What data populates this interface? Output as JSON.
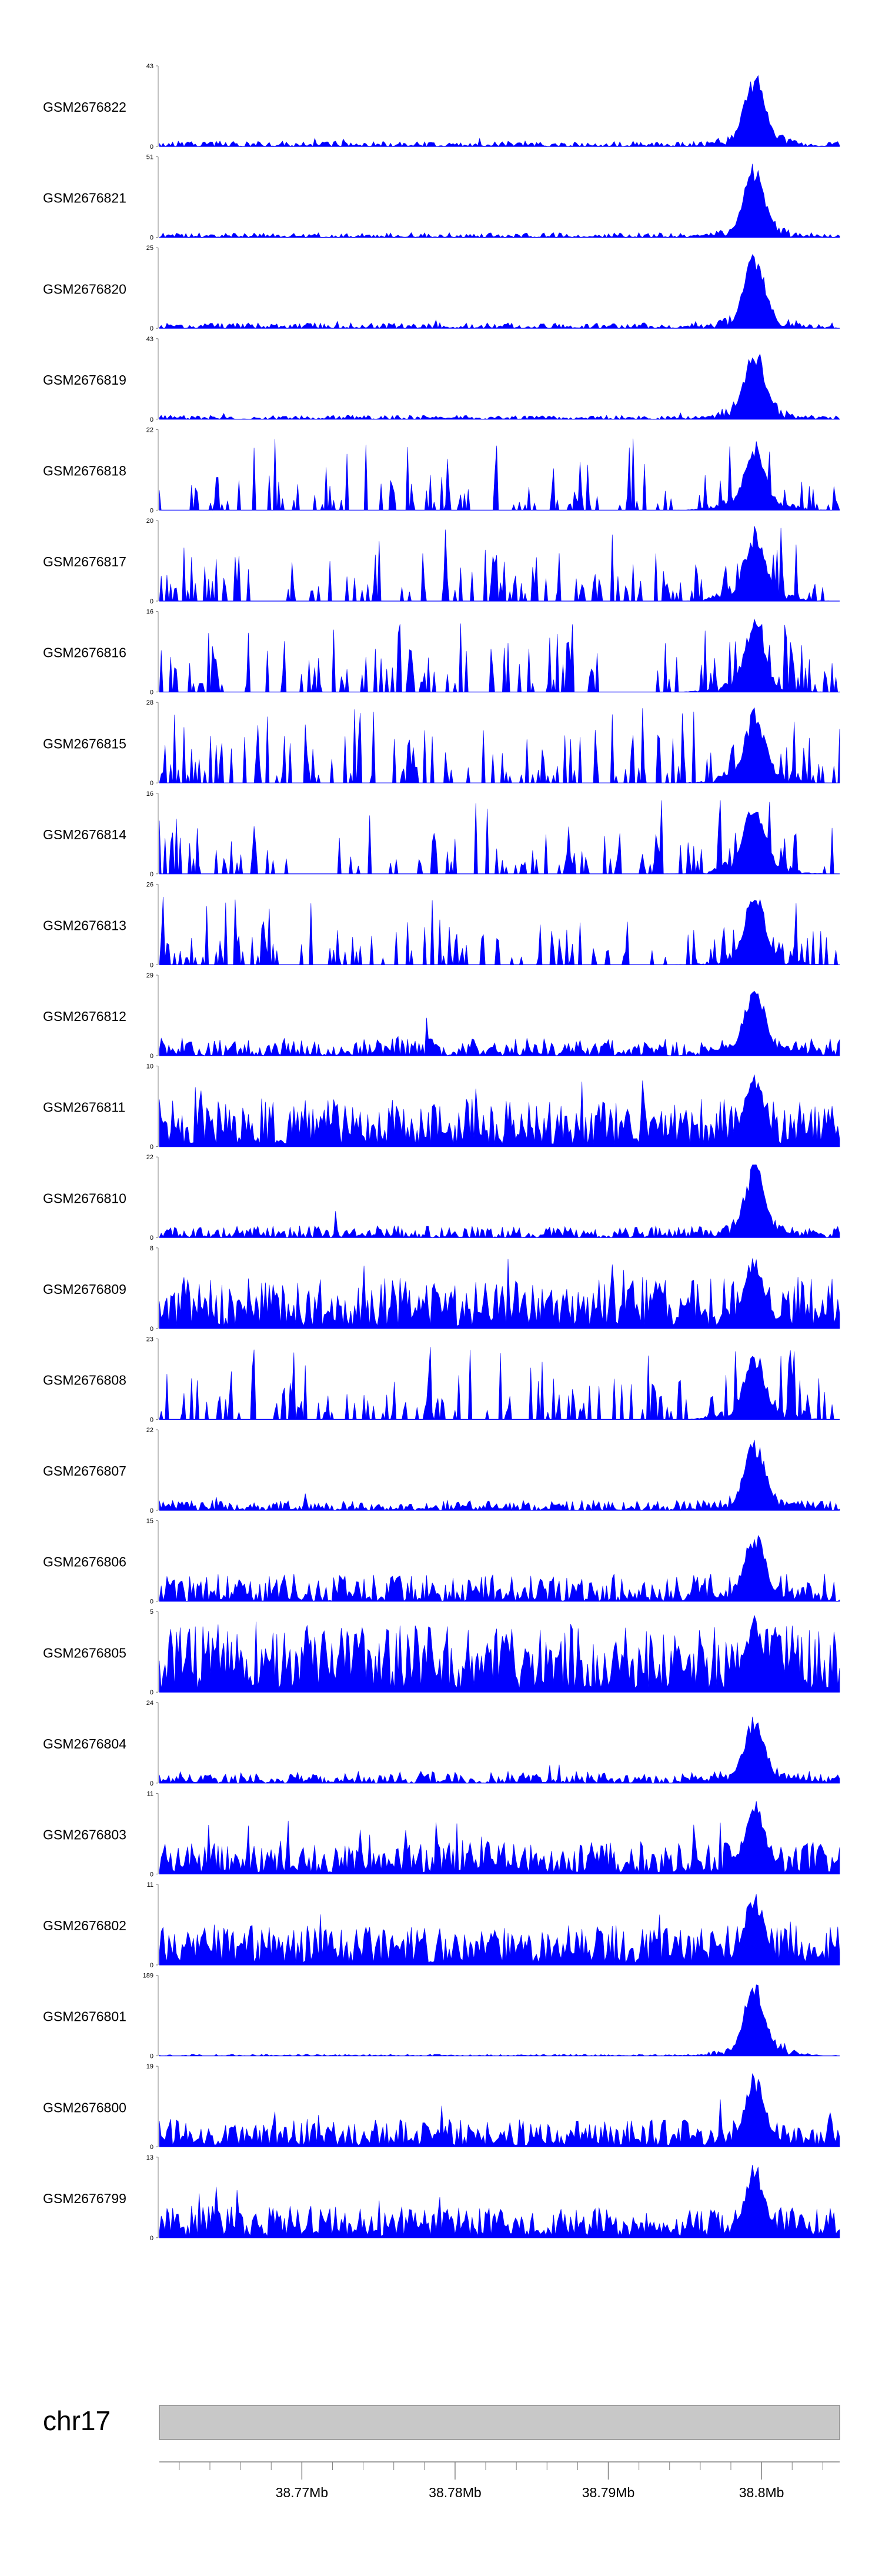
{
  "chart_data": {
    "type": "area",
    "title": "",
    "color": "#0000ff",
    "chromosome": "chr17",
    "xlim_mb": [
      38.7607,
      38.8051
    ],
    "x_ticks": [
      {
        "value": 38.77,
        "label": "38.77Mb"
      },
      {
        "value": 38.78,
        "label": "38.78Mb"
      },
      {
        "value": 38.79,
        "label": "38.79Mb"
      },
      {
        "value": 38.8,
        "label": "38.8Mb"
      }
    ],
    "tracks": [
      {
        "name": "GSM2676822",
        "ymin": 0,
        "ymax": 43,
        "ymin_label": "0",
        "ymax_label": "43",
        "profile": "peak",
        "base": 0.07,
        "peak": 0.95,
        "seed": 1
      },
      {
        "name": "GSM2676821",
        "ymin": 0,
        "ymax": 51,
        "ymin_label": "0",
        "ymax_label": "51",
        "profile": "peak",
        "base": 0.06,
        "peak": 0.95,
        "seed": 2
      },
      {
        "name": "GSM2676820",
        "ymin": 0,
        "ymax": 25,
        "ymin_label": "0",
        "ymax_label": "25",
        "profile": "peak",
        "base": 0.07,
        "peak": 0.97,
        "seed": 3
      },
      {
        "name": "GSM2676819",
        "ymin": 0,
        "ymax": 43,
        "ymin_label": "0",
        "ymax_label": "43",
        "profile": "peak",
        "base": 0.05,
        "peak": 0.97,
        "seed": 4
      },
      {
        "name": "GSM2676818",
        "ymin": 0,
        "ymax": 22,
        "ymin_label": "0",
        "ymax_label": "22",
        "profile": "sparse",
        "base": 0.45,
        "peak": 0.92,
        "seed": 5
      },
      {
        "name": "GSM2676817",
        "ymin": 0,
        "ymax": 20,
        "ymin_label": "0",
        "ymax_label": "20",
        "profile": "sparse",
        "base": 0.65,
        "peak": 0.95,
        "seed": 6
      },
      {
        "name": "GSM2676816",
        "ymin": 0,
        "ymax": 16,
        "ymin_label": "0",
        "ymax_label": "16",
        "profile": "sparse",
        "base": 0.65,
        "peak": 0.95,
        "seed": 7
      },
      {
        "name": "GSM2676815",
        "ymin": 0,
        "ymax": 28,
        "ymin_label": "0",
        "ymax_label": "28",
        "profile": "sparse",
        "base": 0.6,
        "peak": 0.95,
        "seed": 8
      },
      {
        "name": "GSM2676814",
        "ymin": 0,
        "ymax": 16,
        "ymin_label": "0",
        "ymax_label": "16",
        "profile": "sparse",
        "base": 0.6,
        "peak": 0.95,
        "seed": 9
      },
      {
        "name": "GSM2676813",
        "ymin": 0,
        "ymax": 26,
        "ymin_label": "0",
        "ymax_label": "26",
        "profile": "sparse",
        "base": 0.55,
        "peak": 0.95,
        "seed": 10
      },
      {
        "name": "GSM2676812",
        "ymin": 0,
        "ymax": 29,
        "ymin_label": "0",
        "ymax_label": "29",
        "profile": "peak",
        "base": 0.22,
        "peak": 0.92,
        "seed": 11
      },
      {
        "name": "GSM2676811",
        "ymin": 0,
        "ymax": 10,
        "ymin_label": "0",
        "ymax_label": "10",
        "profile": "dense",
        "base": 0.6,
        "peak": 0.95,
        "seed": 12
      },
      {
        "name": "GSM2676810",
        "ymin": 0,
        "ymax": 22,
        "ymin_label": "0",
        "ymax_label": "22",
        "profile": "peak",
        "base": 0.15,
        "peak": 0.95,
        "seed": 13
      },
      {
        "name": "GSM2676809",
        "ymin": 0,
        "ymax": 8,
        "ymin_label": "0",
        "ymax_label": "8",
        "profile": "dense",
        "base": 0.65,
        "peak": 0.95,
        "seed": 14
      },
      {
        "name": "GSM2676808",
        "ymin": 0,
        "ymax": 23,
        "ymin_label": "0",
        "ymax_label": "23",
        "profile": "sparse",
        "base": 0.55,
        "peak": 0.92,
        "seed": 15
      },
      {
        "name": "GSM2676807",
        "ymin": 0,
        "ymax": 22,
        "ymin_label": "0",
        "ymax_label": "22",
        "profile": "peak",
        "base": 0.13,
        "peak": 0.95,
        "seed": 16
      },
      {
        "name": "GSM2676806",
        "ymin": 0,
        "ymax": 15,
        "ymin_label": "0",
        "ymax_label": "15",
        "profile": "peak",
        "base": 0.35,
        "peak": 0.95,
        "seed": 17
      },
      {
        "name": "GSM2676805",
        "ymin": 0,
        "ymax": 5,
        "ymin_label": "0",
        "ymax_label": "5",
        "profile": "dense",
        "base": 0.85,
        "peak": 0.97,
        "seed": 18
      },
      {
        "name": "GSM2676804",
        "ymin": 0,
        "ymax": 24,
        "ymin_label": "0",
        "ymax_label": "24",
        "profile": "peak",
        "base": 0.15,
        "peak": 0.92,
        "seed": 19
      },
      {
        "name": "GSM2676803",
        "ymin": 0,
        "ymax": 11,
        "ymin_label": "0",
        "ymax_label": "11",
        "profile": "dense",
        "base": 0.4,
        "peak": 0.95,
        "seed": 20
      },
      {
        "name": "GSM2676802",
        "ymin": 0,
        "ymax": 11,
        "ymin_label": "0",
        "ymax_label": "11",
        "profile": "dense",
        "base": 0.5,
        "peak": 0.95,
        "seed": 21
      },
      {
        "name": "GSM2676801",
        "ymin": 0,
        "ymax": 189,
        "ymin_label": "0",
        "ymax_label": "189",
        "profile": "peak",
        "base": 0.02,
        "peak": 0.98,
        "seed": 22
      },
      {
        "name": "GSM2676800",
        "ymin": 0,
        "ymax": 19,
        "ymin_label": "0",
        "ymax_label": "19",
        "profile": "dense",
        "base": 0.35,
        "peak": 0.95,
        "seed": 23
      },
      {
        "name": "GSM2676799",
        "ymin": 0,
        "ymax": 13,
        "ymin_label": "0",
        "ymax_label": "13",
        "profile": "dense",
        "base": 0.4,
        "peak": 0.95,
        "seed": 24
      }
    ]
  }
}
